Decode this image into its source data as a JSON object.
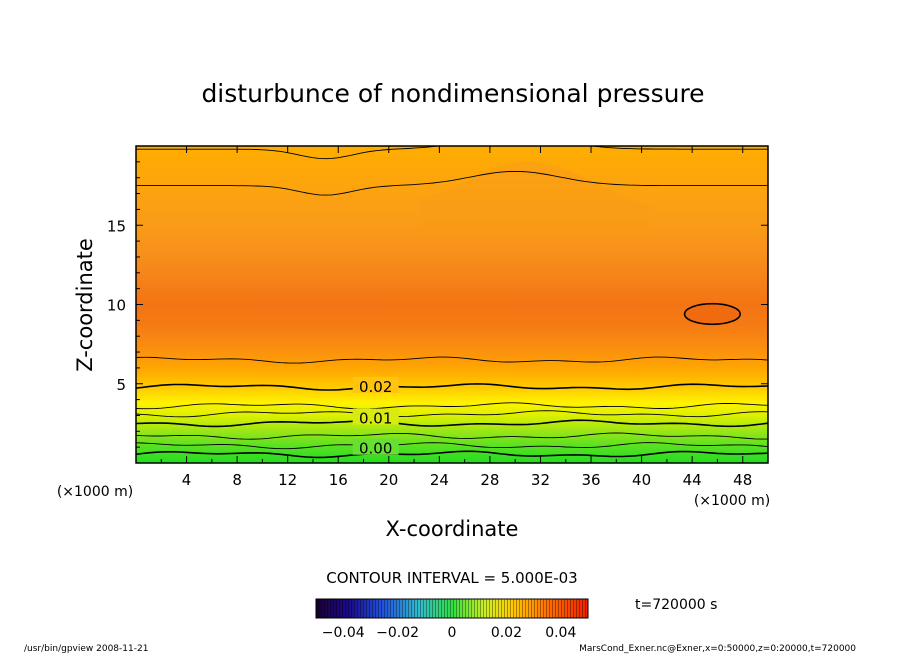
{
  "chart_data": {
    "type": "contour",
    "title": "disturbunce of nondimensional pressure",
    "xlabel": "X-coordinate",
    "ylabel": "Z-coordinate",
    "x_unit_left": "(×1000 m)",
    "x_unit_right": "(×1000 m)",
    "xlim": [
      0,
      50
    ],
    "ylim": [
      0,
      20
    ],
    "x_ticks": [
      "4",
      "8",
      "12",
      "16",
      "20",
      "24",
      "28",
      "32",
      "36",
      "40",
      "44",
      "48"
    ],
    "x_tick_values": [
      4,
      8,
      12,
      16,
      20,
      24,
      28,
      32,
      36,
      40,
      44,
      48
    ],
    "y_ticks": [
      "5",
      "10",
      "15"
    ],
    "y_tick_values": [
      5,
      10,
      15
    ],
    "contour_labels": [
      {
        "text": "0.02",
        "x": 17.3,
        "z": 4.8
      },
      {
        "text": "0.01",
        "x": 17.3,
        "z": 2.8
      },
      {
        "text": "0.00",
        "x": 17.3,
        "z": 0.9
      }
    ],
    "contour_lines_z": [
      0.55,
      1.1,
      1.7,
      2.5,
      3.1,
      3.6,
      4.8,
      6.5,
      17.5,
      19.8
    ],
    "closed_contour": {
      "x": 45.6,
      "z": 9.4,
      "rx": 2.2,
      "rz": 0.65
    },
    "contour_interval": "CONTOUR INTERVAL = 5.000E-03",
    "colorbar_ticks": [
      "−0.04",
      "−0.02",
      "0",
      "0.02",
      "0.04"
    ],
    "colorbar_values": [
      -0.04,
      -0.02,
      0,
      0.02,
      0.04
    ],
    "colorbar_range": [
      -0.05,
      0.05
    ],
    "time_label": "t=720000 s",
    "footer_left": "/usr/bin/gpview   2008-11-21",
    "footer_right": "MarsCond_Exner.nc@Exner,x=0:50000,z=0:20000,t=720000"
  }
}
